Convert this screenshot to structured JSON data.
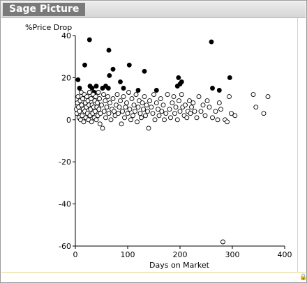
{
  "window": {
    "title": "Sage Picture"
  },
  "chart_data": {
    "type": "scatter",
    "title": "",
    "xlabel": "Days on Market",
    "ylabel": "%Price Drop",
    "xlim": [
      0,
      400
    ],
    "ylim": [
      -60,
      40
    ],
    "x_ticks": [
      0,
      100,
      200,
      300,
      400
    ],
    "y_ticks": [
      -60,
      -40,
      -20,
      0,
      20,
      40
    ],
    "grid": false,
    "series": [
      {
        "marker": "filled",
        "points": [
          [
            5,
            19
          ],
          [
            8,
            15
          ],
          [
            18,
            26
          ],
          [
            27,
            38
          ],
          [
            28,
            16
          ],
          [
            32,
            15
          ],
          [
            36,
            13
          ],
          [
            40,
            16
          ],
          [
            52,
            15
          ],
          [
            58,
            16
          ],
          [
            63,
            15
          ],
          [
            64,
            33
          ],
          [
            65,
            21
          ],
          [
            72,
            24
          ],
          [
            86,
            18
          ],
          [
            92,
            15
          ],
          [
            103,
            26
          ],
          [
            120,
            14
          ],
          [
            132,
            23
          ],
          [
            155,
            14
          ],
          [
            195,
            16
          ],
          [
            197,
            20
          ],
          [
            200,
            17
          ],
          [
            203,
            18
          ],
          [
            260,
            37
          ],
          [
            262,
            15
          ],
          [
            275,
            14
          ],
          [
            295,
            20
          ]
        ]
      },
      {
        "marker": "open",
        "points": [
          [
            2,
            5
          ],
          [
            3,
            3
          ],
          [
            4,
            8
          ],
          [
            5,
            11
          ],
          [
            6,
            6
          ],
          [
            7,
            1
          ],
          [
            8,
            4
          ],
          [
            9,
            9
          ],
          [
            10,
            0
          ],
          [
            11,
            13
          ],
          [
            12,
            7
          ],
          [
            13,
            2
          ],
          [
            14,
            10
          ],
          [
            15,
            5
          ],
          [
            16,
            -1
          ],
          [
            17,
            12
          ],
          [
            18,
            4
          ],
          [
            19,
            8
          ],
          [
            20,
            1
          ],
          [
            21,
            6
          ],
          [
            22,
            11
          ],
          [
            23,
            3
          ],
          [
            24,
            9
          ],
          [
            25,
            0
          ],
          [
            26,
            7
          ],
          [
            27,
            13
          ],
          [
            28,
            2
          ],
          [
            29,
            5
          ],
          [
            30,
            10
          ],
          [
            31,
            -1
          ],
          [
            32,
            7
          ],
          [
            33,
            3
          ],
          [
            34,
            12
          ],
          [
            35,
            6
          ],
          [
            36,
            1
          ],
          [
            37,
            9
          ],
          [
            38,
            4
          ],
          [
            39,
            11
          ],
          [
            40,
            0
          ],
          [
            41,
            6
          ],
          [
            42,
            8
          ],
          [
            43,
            2
          ],
          [
            44,
            13
          ],
          [
            45,
            5
          ],
          [
            46,
            10
          ],
          [
            47,
            -2
          ],
          [
            48,
            3
          ],
          [
            50,
            7
          ],
          [
            52,
            -4
          ],
          [
            54,
            12
          ],
          [
            55,
            4
          ],
          [
            57,
            9
          ],
          [
            58,
            1
          ],
          [
            60,
            6
          ],
          [
            62,
            11
          ],
          [
            64,
            3
          ],
          [
            66,
            8
          ],
          [
            68,
            0
          ],
          [
            70,
            5
          ],
          [
            72,
            10
          ],
          [
            74,
            4
          ],
          [
            76,
            2
          ],
          [
            78,
            7
          ],
          [
            80,
            12
          ],
          [
            82,
            3
          ],
          [
            84,
            6
          ],
          [
            86,
            9
          ],
          [
            88,
            -2
          ],
          [
            90,
            4
          ],
          [
            92,
            11
          ],
          [
            94,
            1
          ],
          [
            96,
            6
          ],
          [
            98,
            8
          ],
          [
            100,
            3
          ],
          [
            102,
            13
          ],
          [
            104,
            5
          ],
          [
            106,
            0
          ],
          [
            108,
            10
          ],
          [
            110,
            2
          ],
          [
            112,
            7
          ],
          [
            114,
            4
          ],
          [
            116,
            12
          ],
          [
            118,
            -1
          ],
          [
            120,
            6
          ],
          [
            122,
            9
          ],
          [
            124,
            3
          ],
          [
            126,
            1
          ],
          [
            128,
            8
          ],
          [
            130,
            5
          ],
          [
            132,
            11
          ],
          [
            134,
            2
          ],
          [
            136,
            7
          ],
          [
            138,
            4
          ],
          [
            140,
            -4
          ],
          [
            142,
            9
          ],
          [
            145,
            6
          ],
          [
            148,
            3
          ],
          [
            150,
            12
          ],
          [
            152,
            0
          ],
          [
            155,
            8
          ],
          [
            158,
            5
          ],
          [
            160,
            2
          ],
          [
            163,
            10
          ],
          [
            165,
            4
          ],
          [
            168,
            7
          ],
          [
            170,
            0
          ],
          [
            173,
            3
          ],
          [
            176,
            12
          ],
          [
            180,
            5
          ],
          [
            182,
            1
          ],
          [
            185,
            8
          ],
          [
            188,
            11
          ],
          [
            190,
            3
          ],
          [
            192,
            6
          ],
          [
            195,
            0
          ],
          [
            198,
            9
          ],
          [
            200,
            4
          ],
          [
            203,
            12
          ],
          [
            205,
            6
          ],
          [
            208,
            2
          ],
          [
            210,
            7
          ],
          [
            213,
            1
          ],
          [
            215,
            4
          ],
          [
            218,
            9
          ],
          [
            220,
            3
          ],
          [
            222,
            6
          ],
          [
            225,
            8
          ],
          [
            228,
            4
          ],
          [
            232,
            1
          ],
          [
            236,
            11
          ],
          [
            240,
            4
          ],
          [
            244,
            7
          ],
          [
            248,
            2
          ],
          [
            252,
            9
          ],
          [
            256,
            6
          ],
          [
            262,
            1
          ],
          [
            268,
            4
          ],
          [
            272,
            0
          ],
          [
            275,
            8
          ],
          [
            278,
            5
          ],
          [
            282,
            -58
          ],
          [
            286,
            0
          ],
          [
            290,
            -1
          ],
          [
            294,
            11
          ],
          [
            298,
            3
          ],
          [
            305,
            2
          ],
          [
            340,
            12
          ],
          [
            345,
            6
          ],
          [
            360,
            3
          ],
          [
            368,
            11
          ]
        ]
      }
    ]
  }
}
